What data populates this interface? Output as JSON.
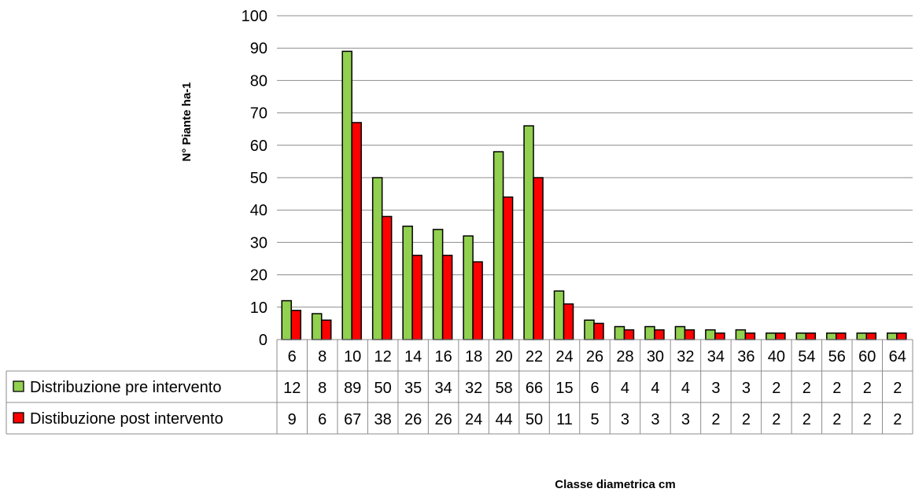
{
  "chart_data": {
    "type": "bar",
    "xlabel": "Classe diametrica cm",
    "ylabel": "N° Piante ha-1",
    "ylim": [
      0,
      100
    ],
    "yticks": [
      "0",
      "10",
      "20",
      "30",
      "40",
      "50",
      "60",
      "70",
      "80",
      "90",
      "100"
    ],
    "grid": true,
    "legend": "data-table",
    "categories": [
      "6",
      "8",
      "10",
      "12",
      "14",
      "16",
      "18",
      "20",
      "22",
      "24",
      "26",
      "28",
      "30",
      "32",
      "34",
      "36",
      "40",
      "54",
      "56",
      "60",
      "64"
    ],
    "series": [
      {
        "name": "Distribuzione pre intervento",
        "color": "#92D050",
        "values": [
          12,
          8,
          89,
          50,
          35,
          34,
          32,
          58,
          66,
          15,
          6,
          4,
          4,
          4,
          3,
          3,
          2,
          2,
          2,
          2,
          2
        ],
        "labels": [
          "12",
          "8",
          "89",
          "50",
          "35",
          "34",
          "32",
          "58",
          "66",
          "15",
          "6",
          "4",
          "4",
          "4",
          "3",
          "3",
          "2",
          "2",
          "2",
          "2",
          "2"
        ]
      },
      {
        "name": "Distibuzione post intervento",
        "color": "#FF0000",
        "values": [
          9,
          6,
          67,
          38,
          26,
          26,
          24,
          44,
          50,
          11,
          5,
          3,
          3,
          3,
          2,
          2,
          2,
          2,
          2,
          2,
          2
        ],
        "labels": [
          "9",
          "6",
          "67",
          "38",
          "26",
          "26",
          "24",
          "44",
          "50",
          "11",
          "5",
          "3",
          "3",
          "3",
          "2",
          "2",
          "2",
          "2",
          "2",
          "2",
          "2"
        ]
      }
    ]
  }
}
